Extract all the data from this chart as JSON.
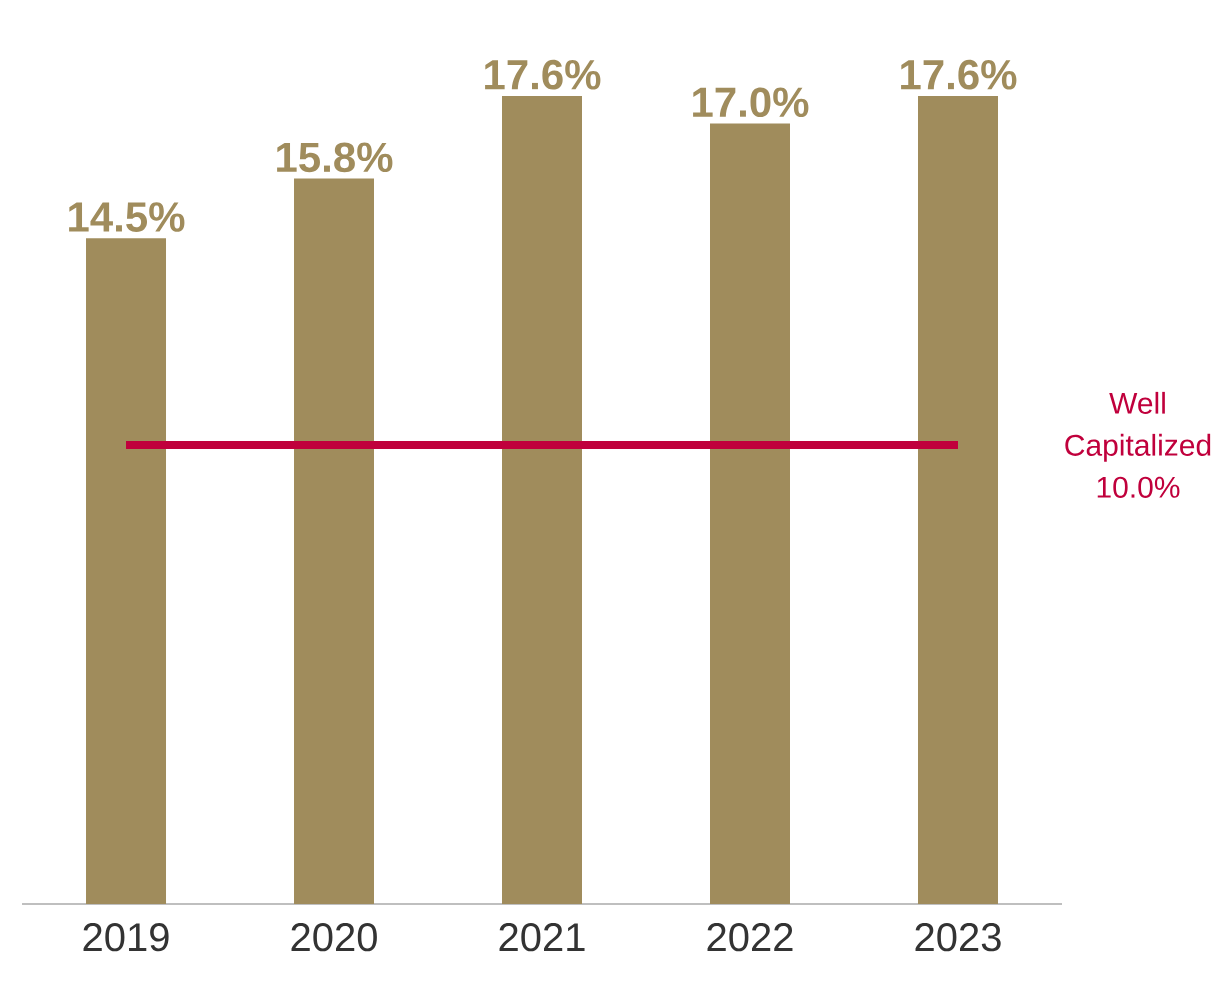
{
  "chart_data": {
    "type": "bar",
    "categories": [
      "2019",
      "2020",
      "2021",
      "2022",
      "2023"
    ],
    "values": [
      14.5,
      15.8,
      17.6,
      17.0,
      17.6
    ],
    "value_labels": [
      "14.5%",
      "15.8%",
      "17.6%",
      "17.0%",
      "17.6%"
    ],
    "color": "#a08c5c",
    "ref_lines": [
      {
        "axis": "y",
        "value": 10.0,
        "label": "Well Capitalized 10.0%",
        "color": "#c0003c"
      }
    ]
  }
}
